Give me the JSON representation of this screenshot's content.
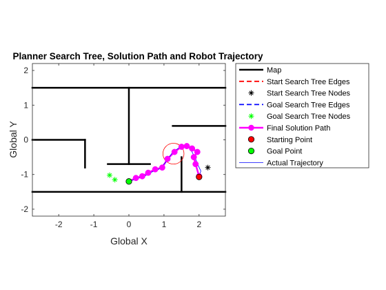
{
  "chart_data": {
    "type": "line",
    "title": "Planner Search Tree, Solution Path and Robot Trajectory",
    "xlabel": "Global X",
    "ylabel": "Global Y",
    "xlim": [
      -2.75,
      2.75
    ],
    "ylim": [
      -2.2,
      2.2
    ],
    "xticks": [
      -2,
      -1,
      0,
      1,
      2
    ],
    "yticks": [
      -2,
      -1,
      0,
      1,
      2
    ],
    "xtick_labels": [
      "-2",
      "-1",
      "0",
      "1",
      "2"
    ],
    "ytick_labels": [
      "-2",
      "-1",
      "0",
      "1",
      "2"
    ],
    "grid": false,
    "legend_position": "outside-right-top",
    "legend": [
      {
        "key": "map",
        "label": "Map"
      },
      {
        "key": "start_edges",
        "label": "Start Search Tree Edges"
      },
      {
        "key": "start_nodes",
        "label": "Start Search Tree Nodes"
      },
      {
        "key": "goal_edges",
        "label": "Goal Search Tree Edges"
      },
      {
        "key": "goal_nodes",
        "label": "Goal Search Tree Nodes"
      },
      {
        "key": "solution",
        "label": "Final Solution Path"
      },
      {
        "key": "start_point",
        "label": "Starting Point"
      },
      {
        "key": "goal_point",
        "label": "Goal Point"
      },
      {
        "key": "trajectory",
        "label": "Actual Trajectory"
      }
    ],
    "colors": {
      "map": "#000000",
      "start_edges": "#ff0000",
      "start_nodes": "#000000",
      "goal_edges": "#0000ff",
      "goal_nodes": "#00ff00",
      "solution": "#ff00ff",
      "start_point": "#ff0000",
      "goal_point": "#00ff00",
      "trajectory": "#0000ff"
    },
    "map_segments": [
      [
        [
          -2.75,
          1.5
        ],
        [
          2.75,
          1.5
        ]
      ],
      [
        [
          -2.75,
          -1.5
        ],
        [
          2.75,
          -1.5
        ]
      ],
      [
        [
          -2.75,
          0
        ],
        [
          -1.25,
          0
        ]
      ],
      [
        [
          -1.25,
          0
        ],
        [
          -1.25,
          -0.8
        ]
      ],
      [
        [
          0,
          1.5
        ],
        [
          0,
          -0.7
        ]
      ],
      [
        [
          -0.6,
          -0.7
        ],
        [
          0.6,
          -0.7
        ]
      ],
      [
        [
          1.25,
          0.4
        ],
        [
          2.75,
          0.4
        ]
      ],
      [
        [
          1.5,
          -0.5
        ],
        [
          1.5,
          -1.5
        ]
      ]
    ],
    "solution_path": {
      "x": [
        2.0,
        1.9,
        1.85,
        1.95,
        1.8,
        1.65,
        1.5,
        1.3,
        1.1,
        0.95,
        0.75,
        0.55,
        0.38,
        0.2,
        0.0
      ],
      "y": [
        -1.05,
        -0.7,
        -0.5,
        -0.35,
        -0.25,
        -0.18,
        -0.2,
        -0.35,
        -0.55,
        -0.8,
        -0.85,
        -0.95,
        -1.05,
        -1.1,
        -1.2
      ]
    },
    "trajectory": {
      "x": [
        2.0,
        2.05,
        1.98,
        1.9,
        1.8,
        1.7,
        1.55,
        1.4,
        1.25,
        1.15,
        1.05,
        0.95,
        0.85,
        0.72,
        0.6,
        0.45,
        0.3,
        0.15,
        0.0
      ],
      "y": [
        -1.05,
        -0.9,
        -0.75,
        -0.55,
        -0.35,
        -0.2,
        -0.15,
        -0.25,
        -0.35,
        -0.5,
        -0.65,
        -0.75,
        -0.85,
        -0.9,
        -0.95,
        -1.05,
        -1.1,
        -1.15,
        -1.2
      ]
    },
    "robot_circle": {
      "cx": 1.27,
      "cy": -0.4,
      "r": 0.3
    },
    "start_point": {
      "x": 2.0,
      "y": -1.07
    },
    "goal_point": {
      "x": 0.0,
      "y": -1.2
    },
    "start_nodes": [
      {
        "x": 2.25,
        "y": -0.8
      }
    ],
    "goal_nodes": [
      {
        "x": -0.55,
        "y": -1.02
      },
      {
        "x": -0.4,
        "y": -1.15
      }
    ]
  }
}
